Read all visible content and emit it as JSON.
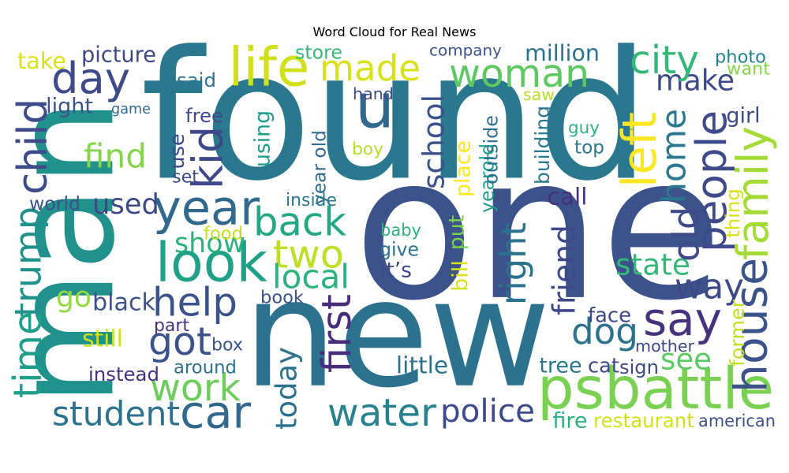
{
  "chart_data": {
    "type": "wordcloud",
    "title": "Word Cloud for Real News",
    "background_color": "#ffffff",
    "colormap": "viridis",
    "words": [
      {
        "text": "found",
        "color": "#2a788e"
      },
      {
        "text": "man",
        "color": "#21918c"
      },
      {
        "text": "one",
        "color": "#3b528b"
      },
      {
        "text": "new",
        "color": "#2c728e"
      },
      {
        "text": "woman",
        "color": "#5ec962"
      },
      {
        "text": "psbattle",
        "color": "#7ad151"
      },
      {
        "text": "life",
        "color": "#d0e11c"
      },
      {
        "text": "made",
        "color": "#d8e219"
      },
      {
        "text": "day",
        "color": "#3e4a89"
      },
      {
        "text": "u",
        "color": "#31688e"
      },
      {
        "text": "make",
        "color": "#3e4989"
      },
      {
        "text": "city",
        "color": "#35b779"
      },
      {
        "text": "people",
        "color": "#3e4a89"
      },
      {
        "text": "year",
        "color": "#31688e"
      },
      {
        "text": "look",
        "color": "#1fa187"
      },
      {
        "text": "back",
        "color": "#22a884"
      },
      {
        "text": "two",
        "color": "#bddf26"
      },
      {
        "text": "say",
        "color": "#46327e"
      },
      {
        "text": "help",
        "color": "#3b528b"
      },
      {
        "text": "family",
        "color": "#a5db36"
      },
      {
        "text": "home",
        "color": "#2a788e"
      },
      {
        "text": "left",
        "color": "#fde725"
      },
      {
        "text": "child",
        "color": "#3e4a89"
      },
      {
        "text": "trump",
        "color": "#21918c"
      },
      {
        "text": "time",
        "color": "#1f9e89"
      },
      {
        "text": "kid",
        "color": "#3e4989"
      },
      {
        "text": "find",
        "color": "#86d549"
      },
      {
        "text": "used",
        "color": "#3e4989"
      },
      {
        "text": "show",
        "color": "#2db27d"
      },
      {
        "text": "got",
        "color": "#3b528b"
      },
      {
        "text": "work",
        "color": "#6ccd5a"
      },
      {
        "text": "car",
        "color": "#31688e"
      },
      {
        "text": "student",
        "color": "#2c728e"
      },
      {
        "text": "water",
        "color": "#26828e"
      },
      {
        "text": "police",
        "color": "#3e4a89"
      },
      {
        "text": "dog",
        "color": "#2c728e"
      },
      {
        "text": "way",
        "color": "#3e4989"
      },
      {
        "text": "house",
        "color": "#3b528b"
      },
      {
        "text": "school",
        "color": "#3b528b"
      },
      {
        "text": "state",
        "color": "#35b779"
      },
      {
        "text": "see",
        "color": "#5ec962"
      },
      {
        "text": "local",
        "color": "#2db27d"
      },
      {
        "text": "first",
        "color": "#472d7b"
      },
      {
        "text": "today",
        "color": "#2c728e"
      },
      {
        "text": "right",
        "color": "#2c728e"
      },
      {
        "text": "friend",
        "color": "#3e4989"
      },
      {
        "text": "old",
        "color": "#3e4989"
      },
      {
        "text": "go",
        "color": "#95d840"
      },
      {
        "text": "black",
        "color": "#3b528b"
      },
      {
        "text": "picture",
        "color": "#3e4989"
      },
      {
        "text": "take",
        "color": "#d8e219"
      },
      {
        "text": "store",
        "color": "#35b779"
      },
      {
        "text": "company",
        "color": "#3b528b"
      },
      {
        "text": "million",
        "color": "#2c728e"
      },
      {
        "text": "photo",
        "color": "#26828e"
      },
      {
        "text": "want",
        "color": "#86d549"
      },
      {
        "text": "said",
        "color": "#2c728e"
      },
      {
        "text": "light",
        "color": "#3b528b"
      },
      {
        "text": "game",
        "color": "#31688e"
      },
      {
        "text": "hand",
        "color": "#3e4989"
      },
      {
        "text": "saw",
        "color": "#b5de2b"
      },
      {
        "text": "guy",
        "color": "#2db27d"
      },
      {
        "text": "top",
        "color": "#2a788e"
      },
      {
        "text": "girl",
        "color": "#3e4989"
      },
      {
        "text": "free",
        "color": "#3e4989"
      },
      {
        "text": "use",
        "color": "#3e4989"
      },
      {
        "text": "set",
        "color": "#3e4989"
      },
      {
        "text": "using",
        "color": "#1f9e89"
      },
      {
        "text": "year old",
        "color": "#31688e"
      },
      {
        "text": "boy",
        "color": "#b5de2b"
      },
      {
        "text": "yearold",
        "color": "#1f9e89"
      },
      {
        "text": "place",
        "color": "#fde725"
      },
      {
        "text": "outside",
        "color": "#2c728e"
      },
      {
        "text": "building",
        "color": "#2a788e"
      },
      {
        "text": "inside",
        "color": "#2a788e"
      },
      {
        "text": "call",
        "color": "#46327e"
      },
      {
        "text": "world",
        "color": "#3b528b"
      },
      {
        "text": "food",
        "color": "#c2df23"
      },
      {
        "text": "baby",
        "color": "#2db27d"
      },
      {
        "text": "give",
        "color": "#2c728e"
      },
      {
        "text": "it’s",
        "color": "#3e4989"
      },
      {
        "text": "put",
        "color": "#7ad151"
      },
      {
        "text": "bill",
        "color": "#d8e219"
      },
      {
        "text": "thing",
        "color": "#d8e219"
      },
      {
        "text": "book",
        "color": "#3b528b"
      },
      {
        "text": "part",
        "color": "#46327e"
      },
      {
        "text": "box",
        "color": "#3b528b"
      },
      {
        "text": "still",
        "color": "#d0e11c"
      },
      {
        "text": "around",
        "color": "#2c728e"
      },
      {
        "text": "instead",
        "color": "#46327e"
      },
      {
        "text": "little",
        "color": "#2c728e"
      },
      {
        "text": "face",
        "color": "#3e4989"
      },
      {
        "text": "mother",
        "color": "#3e4989"
      },
      {
        "text": "former",
        "color": "#c2df23"
      },
      {
        "text": "tree",
        "color": "#2a788e"
      },
      {
        "text": "cat",
        "color": "#3e4989"
      },
      {
        "text": "sign",
        "color": "#3e4989"
      },
      {
        "text": "fire",
        "color": "#2db27d"
      },
      {
        "text": "restaurant",
        "color": "#d0e11c"
      },
      {
        "text": "american",
        "color": "#3b528b"
      }
    ]
  }
}
